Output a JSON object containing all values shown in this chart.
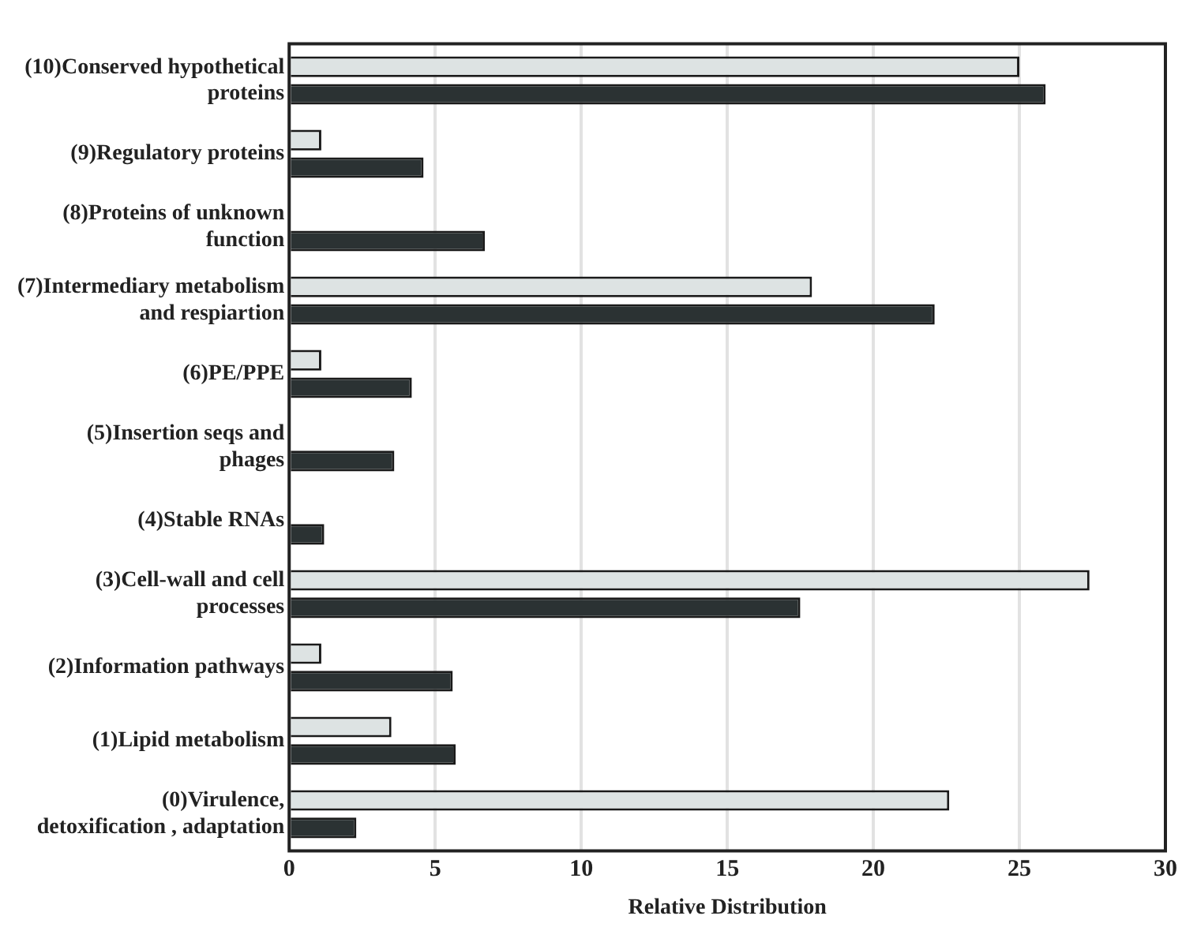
{
  "chart_data": {
    "type": "bar",
    "orientation": "horizontal",
    "xlabel": "Relative Distribution",
    "categories": [
      "(10)Conserved hypothetical proteins",
      "(9)Regulatory proteins",
      "(8)Proteins of unknown function",
      "(7)Intermediary metabolism and respiartion",
      "(6)PE/PPE",
      "(5)Insertion seqs and phages",
      "(4)Stable RNAs",
      "(3)Cell-wall and cell processes",
      "(2)Information pathways",
      "(1)Lipid metabolism",
      "(0)Virulence, detoxification , adaptation"
    ],
    "series": [
      {
        "color": "#dde3e3",
        "values": [
          25.0,
          1.1,
          0,
          17.9,
          1.1,
          0,
          0,
          27.4,
          1.1,
          3.5,
          22.6
        ]
      },
      {
        "color": "#2b3233",
        "values": [
          25.9,
          4.6,
          6.7,
          22.1,
          4.2,
          3.6,
          1.2,
          17.5,
          5.6,
          5.7,
          2.3
        ]
      }
    ],
    "xlim": [
      0,
      30
    ],
    "xticks": [
      0,
      5,
      10,
      15,
      20,
      25,
      30
    ],
    "grid": "x",
    "legend": false
  }
}
